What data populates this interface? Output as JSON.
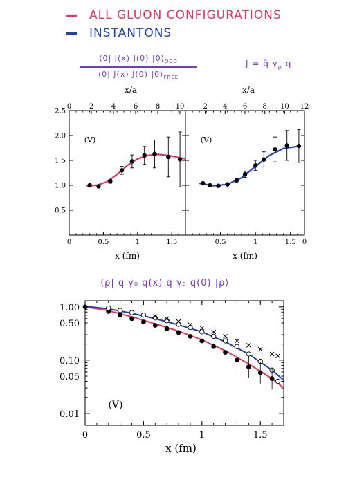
{
  "legend": {
    "all_gluon": "ALL GLUON CONFIGURATIONS",
    "instantons": "INSTANTONS",
    "colors": {
      "all_gluon": "#e8345a",
      "instantons": "#1f3fb8",
      "annotation": "#7b35c9"
    }
  },
  "annotations": {
    "ratio_numerator": "⟨0| J(x) J(0) |0⟩",
    "ratio_numerator_sub": "QCD",
    "ratio_denominator": "⟨0| J(x) J(0) |0⟩",
    "ratio_denominator_sub": "FREE",
    "current_def": "J = q̄ γ",
    "current_sub": "μ",
    "current_end": "q",
    "bottom_title": "⟨ρ| q̄ γ₀ q(x)  q̄ γ₀ q(0) |ρ⟩"
  },
  "chart_data": [
    {
      "type": "scatter",
      "title": "",
      "panel_label": "(V)",
      "xlabel": "x (fm)",
      "top_xlabel": "x/a",
      "ylabel": "",
      "xlim": [
        0,
        1.7
      ],
      "ylim": [
        0,
        2.5
      ],
      "top_xlim": [
        0,
        10.5
      ],
      "xticks": [
        "0",
        "0.5",
        "1",
        "1.5"
      ],
      "yticks": [
        "0.5",
        "1.0",
        "1.5",
        "2.0",
        "2.5"
      ],
      "top_xticks": [
        "0",
        "2",
        "4",
        "6",
        "8",
        "10"
      ],
      "series": [
        {
          "color": "#e8345a",
          "points": [
            {
              "x": 0.3,
              "y": 1.0,
              "err": 0.02
            },
            {
              "x": 0.43,
              "y": 0.98,
              "err": 0.02
            },
            {
              "x": 0.6,
              "y": 1.08,
              "err": 0.04
            },
            {
              "x": 0.77,
              "y": 1.3,
              "err": 0.08
            },
            {
              "x": 0.92,
              "y": 1.48,
              "err": 0.13
            },
            {
              "x": 1.1,
              "y": 1.6,
              "err": 0.18
            },
            {
              "x": 1.25,
              "y": 1.63,
              "err": 0.28
            },
            {
              "x": 1.45,
              "y": 1.57,
              "err": 0.4
            },
            {
              "x": 1.62,
              "y": 1.52,
              "err": 0.55
            }
          ],
          "curve": [
            [
              0.25,
              0.99
            ],
            [
              0.4,
              1.0
            ],
            [
              0.55,
              1.07
            ],
            [
              0.7,
              1.22
            ],
            [
              0.85,
              1.4
            ],
            [
              1.0,
              1.53
            ],
            [
              1.15,
              1.6
            ],
            [
              1.3,
              1.62
            ],
            [
              1.45,
              1.6
            ],
            [
              1.7,
              1.53
            ]
          ]
        }
      ]
    },
    {
      "type": "scatter",
      "title": "",
      "panel_label": "(V)",
      "xlabel": "x (fm)",
      "top_xlabel": "x/a",
      "ylabel": "",
      "xlim": [
        0,
        1.7
      ],
      "ylim": [
        0,
        2.5
      ],
      "top_xlim": [
        0,
        12
      ],
      "xticks": [
        "0.5",
        "1",
        "1.5",
        "0"
      ],
      "yticks": [],
      "top_xticks": [
        "2",
        "4",
        "6",
        "8",
        "10",
        "12"
      ],
      "series": [
        {
          "color": "#1f3fb8",
          "points": [
            {
              "x": 0.25,
              "y": 1.04,
              "err": 0.02
            },
            {
              "x": 0.35,
              "y": 1.0,
              "err": 0.02
            },
            {
              "x": 0.47,
              "y": 0.99,
              "err": 0.02
            },
            {
              "x": 0.6,
              "y": 1.02,
              "err": 0.02
            },
            {
              "x": 0.73,
              "y": 1.1,
              "err": 0.03
            },
            {
              "x": 0.85,
              "y": 1.22,
              "err": 0.06
            },
            {
              "x": 1.0,
              "y": 1.4,
              "err": 0.1
            },
            {
              "x": 1.12,
              "y": 1.52,
              "err": 0.15
            },
            {
              "x": 1.28,
              "y": 1.72,
              "err": 0.25
            },
            {
              "x": 1.45,
              "y": 1.8,
              "err": 0.3
            },
            {
              "x": 1.62,
              "y": 1.79,
              "err": 0.33
            }
          ],
          "curve": [
            [
              0.2,
              1.04
            ],
            [
              0.4,
              0.99
            ],
            [
              0.6,
              1.02
            ],
            [
              0.8,
              1.15
            ],
            [
              1.0,
              1.38
            ],
            [
              1.2,
              1.6
            ],
            [
              1.4,
              1.74
            ],
            [
              1.65,
              1.79
            ]
          ]
        }
      ]
    },
    {
      "type": "scatter",
      "title": "",
      "panel_label": "(V)",
      "xlabel": "x (fm)",
      "ylabel": "",
      "xlim": [
        0,
        1.7
      ],
      "ylim": [
        0.006,
        1.3
      ],
      "yscale": "log",
      "xticks": [
        "0",
        "0.5",
        "1",
        "1.5"
      ],
      "yticks": [
        "1.00",
        "0.50",
        "0.10",
        "0.05",
        "0.01"
      ],
      "series": [
        {
          "marker": "filled-circle",
          "color": "#000000",
          "points": [
            [
              0.0,
              1.0
            ],
            [
              0.2,
              0.82
            ],
            [
              0.3,
              0.7
            ],
            [
              0.4,
              0.6
            ],
            [
              0.5,
              0.52
            ],
            [
              0.6,
              0.45
            ],
            [
              0.7,
              0.39
            ],
            [
              0.8,
              0.33
            ],
            [
              0.9,
              0.28
            ],
            [
              1.0,
              0.23
            ],
            [
              1.1,
              0.18
            ],
            [
              1.2,
              0.14
            ],
            [
              1.3,
              0.1
            ],
            [
              1.4,
              0.075
            ],
            [
              1.5,
              0.058
            ],
            [
              1.6,
              0.045
            ]
          ]
        },
        {
          "marker": "open-circle",
          "color": "#000000",
          "points": [
            [
              0.2,
              0.95
            ],
            [
              0.3,
              0.86
            ],
            [
              0.4,
              0.78
            ],
            [
              0.5,
              0.7
            ],
            [
              0.6,
              0.62
            ],
            [
              0.7,
              0.55
            ],
            [
              0.8,
              0.47
            ],
            [
              0.9,
              0.41
            ],
            [
              1.0,
              0.34
            ],
            [
              1.1,
              0.28
            ],
            [
              1.2,
              0.23
            ],
            [
              1.3,
              0.18
            ],
            [
              1.4,
              0.13
            ],
            [
              1.5,
              0.095
            ],
            [
              1.6,
              0.065
            ],
            [
              1.65,
              0.04
            ]
          ]
        },
        {
          "marker": "cross",
          "color": "#000000",
          "points": [
            [
              0.6,
              0.66
            ],
            [
              0.7,
              0.6
            ],
            [
              0.8,
              0.53
            ],
            [
              0.9,
              0.46
            ],
            [
              1.0,
              0.4
            ],
            [
              1.1,
              0.34
            ],
            [
              1.2,
              0.28
            ],
            [
              1.3,
              0.23
            ],
            [
              1.4,
              0.19
            ],
            [
              1.5,
              0.16
            ],
            [
              1.6,
              0.13
            ],
            [
              1.65,
              0.12
            ]
          ]
        },
        {
          "marker": "line",
          "color": "#e8345a",
          "points": [
            [
              0.0,
              1.0
            ],
            [
              0.2,
              0.85
            ],
            [
              0.4,
              0.65
            ],
            [
              0.6,
              0.48
            ],
            [
              0.8,
              0.35
            ],
            [
              1.0,
              0.24
            ],
            [
              1.2,
              0.15
            ],
            [
              1.4,
              0.085
            ],
            [
              1.6,
              0.045
            ],
            [
              1.7,
              0.03
            ]
          ]
        },
        {
          "marker": "line",
          "color": "#1f3fb8",
          "points": [
            [
              0.0,
              1.02
            ],
            [
              0.2,
              0.92
            ],
            [
              0.4,
              0.76
            ],
            [
              0.6,
              0.6
            ],
            [
              0.8,
              0.46
            ],
            [
              1.0,
              0.34
            ],
            [
              1.2,
              0.22
            ],
            [
              1.4,
              0.13
            ],
            [
              1.6,
              0.065
            ],
            [
              1.7,
              0.042
            ]
          ]
        }
      ]
    }
  ]
}
